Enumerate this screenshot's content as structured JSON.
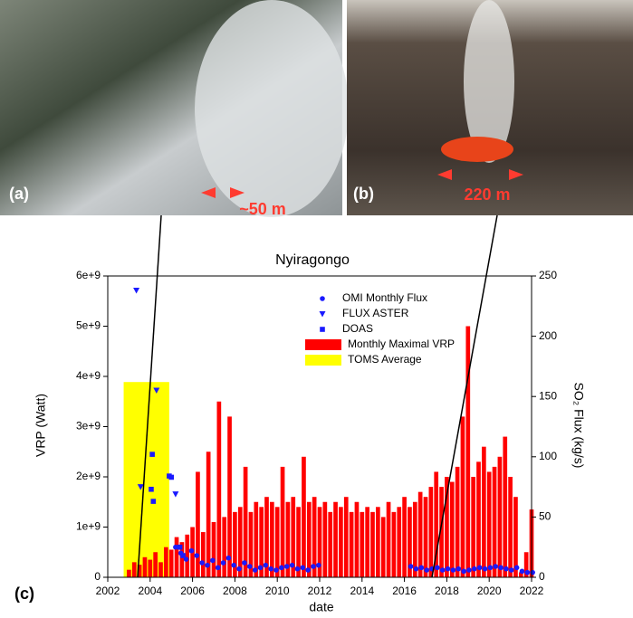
{
  "photos": [
    {
      "label": "(a)",
      "annotation": "~50 m"
    },
    {
      "label": "(b)",
      "annotation": "220 m"
    }
  ],
  "chart_data": {
    "type": "bar",
    "panel_label": "(c)",
    "title": "Nyiragongo",
    "xlabel": "date",
    "ylabel": "VRP (Watt)",
    "y2label": "SO₂ Flux (kg/s)",
    "xlim": [
      2002,
      2022
    ],
    "xticks": [
      2002,
      2004,
      2006,
      2008,
      2010,
      2012,
      2014,
      2016,
      2018,
      2020,
      2022
    ],
    "ylim": [
      0,
      6000000000.0
    ],
    "yticks": [
      0,
      {
        "value": 1000000000.0,
        "label": "1e+9"
      },
      {
        "value": 2000000000.0,
        "label": "2e+9"
      },
      {
        "value": 3000000000.0,
        "label": "3e+9"
      },
      {
        "value": 4000000000.0,
        "label": "4e+9"
      },
      {
        "value": 5000000000.0,
        "label": "5e+9"
      },
      {
        "value": 6000000000.0,
        "label": "6e+9"
      }
    ],
    "y2lim": [
      0,
      250
    ],
    "y2ticks": [
      0,
      50,
      100,
      150,
      200,
      250
    ],
    "series": [
      {
        "name": "OMI Monthly Flux",
        "type": "scatter",
        "marker": "circle",
        "color": "#1a1aff",
        "axis": "y2",
        "x": [
          2005.2,
          2005.45,
          2005.7,
          2005.95,
          2006.2,
          2006.45,
          2006.7,
          2006.95,
          2007.2,
          2007.45,
          2007.7,
          2007.95,
          2008.2,
          2008.45,
          2008.7,
          2008.95,
          2009.2,
          2009.45,
          2009.7,
          2009.95,
          2010.2,
          2010.45,
          2010.7,
          2010.95,
          2011.2,
          2011.45,
          2011.7,
          2011.95,
          2016.3,
          2016.55,
          2016.8,
          2017.05,
          2017.3,
          2017.55,
          2017.8,
          2018.05,
          2018.3,
          2018.55,
          2018.8,
          2019.05,
          2019.3,
          2019.55,
          2019.8,
          2020.05,
          2020.3,
          2020.55,
          2020.8,
          2021.05,
          2021.3,
          2021.55,
          2021.8,
          2022.05
        ],
        "values": [
          25,
          20,
          15,
          22,
          18,
          12,
          10,
          14,
          8,
          12,
          16,
          10,
          7,
          12,
          9,
          6,
          8,
          10,
          7,
          6,
          8,
          9,
          10,
          7,
          8,
          6,
          9,
          10,
          9,
          7,
          8,
          6,
          7,
          8,
          6,
          7,
          6,
          7,
          5,
          6,
          7,
          8,
          7,
          8,
          9,
          8,
          7,
          6,
          8,
          5,
          4,
          4
        ]
      },
      {
        "name": "FLUX ASTER",
        "type": "scatter",
        "marker": "triangle-down",
        "color": "#1a1aff",
        "axis": "y2",
        "x": [
          2003.35,
          2003.55,
          2004.3,
          2005.2
        ],
        "values": [
          238,
          75,
          155,
          69
        ]
      },
      {
        "name": "DOAS",
        "type": "scatter",
        "marker": "square",
        "color": "#1a1aff",
        "axis": "y2",
        "x": [
          2004.1,
          2004.05,
          2004.15,
          2004.9,
          2005.0,
          2005.4,
          2005.55
        ],
        "values": [
          102,
          73,
          63,
          84,
          83,
          25,
          18
        ]
      },
      {
        "name": "Monthly Maximal VRP",
        "type": "bar",
        "marker": "bar",
        "color": "#ff0000",
        "x": [
          2003.0,
          2003.25,
          2003.5,
          2003.75,
          2004.0,
          2004.25,
          2004.5,
          2004.75,
          2005.0,
          2005.25,
          2005.5,
          2005.75,
          2006.0,
          2006.25,
          2006.5,
          2006.75,
          2007.0,
          2007.25,
          2007.5,
          2007.75,
          2008.0,
          2008.25,
          2008.5,
          2008.75,
          2009.0,
          2009.25,
          2009.5,
          2009.75,
          2010.0,
          2010.25,
          2010.5,
          2010.75,
          2011.0,
          2011.25,
          2011.5,
          2011.75,
          2012.0,
          2012.25,
          2012.5,
          2012.75,
          2013.0,
          2013.25,
          2013.5,
          2013.75,
          2014.0,
          2014.25,
          2014.5,
          2014.75,
          2015.0,
          2015.25,
          2015.5,
          2015.75,
          2016.0,
          2016.25,
          2016.5,
          2016.75,
          2017.0,
          2017.25,
          2017.5,
          2017.75,
          2018.0,
          2018.25,
          2018.5,
          2018.75,
          2019.0,
          2019.25,
          2019.5,
          2019.75,
          2020.0,
          2020.25,
          2020.5,
          2020.75,
          2021.0,
          2021.25,
          2021.5,
          2021.75,
          2022.0
        ],
        "values": [
          150000000.0,
          300000000.0,
          250000000.0,
          400000000.0,
          350000000.0,
          500000000.0,
          300000000.0,
          600000000.0,
          550000000.0,
          800000000.0,
          700000000.0,
          850000000.0,
          1000000000.0,
          2100000000.0,
          900000000.0,
          2500000000.0,
          1100000000.0,
          3500000000.0,
          1200000000.0,
          3200000000.0,
          1300000000.0,
          1400000000.0,
          2200000000.0,
          1300000000.0,
          1500000000.0,
          1400000000.0,
          1600000000.0,
          1500000000.0,
          1400000000.0,
          2200000000.0,
          1500000000.0,
          1600000000.0,
          1400000000.0,
          2400000000.0,
          1500000000.0,
          1600000000.0,
          1400000000.0,
          1500000000.0,
          1300000000.0,
          1500000000.0,
          1400000000.0,
          1600000000.0,
          1300000000.0,
          1500000000.0,
          1300000000.0,
          1400000000.0,
          1300000000.0,
          1400000000.0,
          1200000000.0,
          1500000000.0,
          1300000000.0,
          1400000000.0,
          1600000000.0,
          1400000000.0,
          1500000000.0,
          1700000000.0,
          1600000000.0,
          1800000000.0,
          2100000000.0,
          1800000000.0,
          2000000000.0,
          1900000000.0,
          2200000000.0,
          3200000000.0,
          5000000000.0,
          2000000000.0,
          2300000000.0,
          2600000000.0,
          2100000000.0,
          2200000000.0,
          2400000000.0,
          2800000000.0,
          2000000000.0,
          1600000000.0,
          100000000.0,
          500000000.0,
          1350000000.0
        ]
      },
      {
        "name": "TOMS Average",
        "type": "span",
        "marker": "bar",
        "color": "#ffff00",
        "axis": "y2",
        "xrange": [
          2002.75,
          2004.9
        ],
        "value": 162
      }
    ]
  }
}
